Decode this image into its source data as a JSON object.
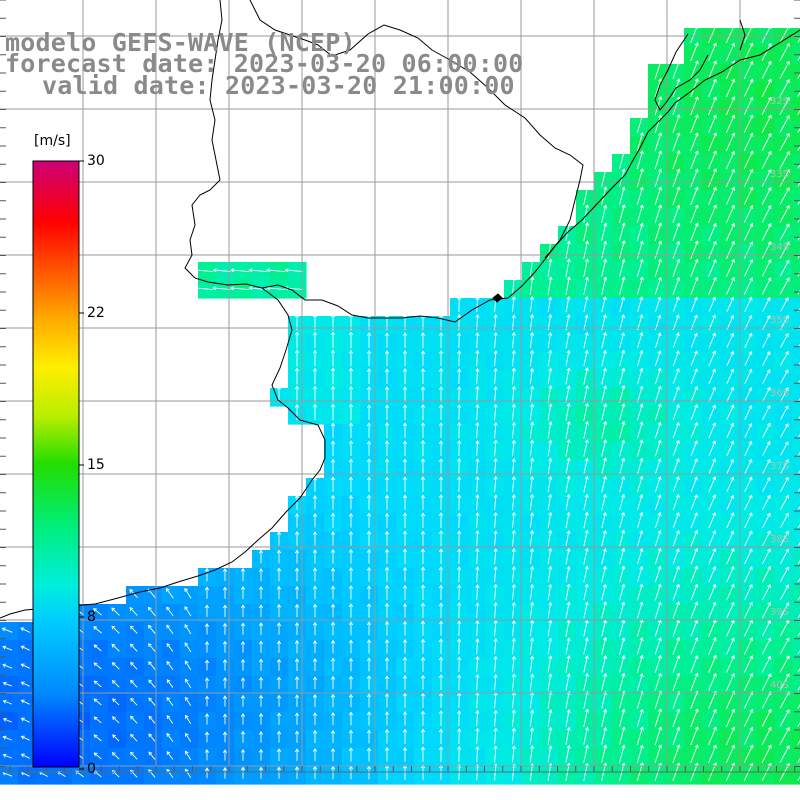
{
  "titles": {
    "model": "modelo GEFS-WAVE (NCEP)",
    "forecast": "forecast date: 2023-03-20 06:00:00",
    "valid": "valid date: 2023-03-20 21:00:00"
  },
  "colorbar": {
    "unit": "[m/s]",
    "ticks": [
      "30",
      "22",
      "15",
      "8",
      "0"
    ],
    "colors": [
      "#0000ff",
      "#0088ff",
      "#00ddff",
      "#00ff66",
      "#33dd00",
      "#ccee00",
      "#ffff00",
      "#ffaa00",
      "#ff5500",
      "#ff0000",
      "#ee0044",
      "#cc0077"
    ]
  },
  "latitude_labels": [
    "32S",
    "33S",
    "34S",
    "35S",
    "36S",
    "37S",
    "38S",
    "39S",
    "40S"
  ],
  "colors": {
    "land": "#ffffff",
    "grid": "#999999",
    "coast": "#000000",
    "arrow": "#ffffff",
    "title_text": "#8a8a8a",
    "latitude_label": "#bbbbbb"
  }
}
